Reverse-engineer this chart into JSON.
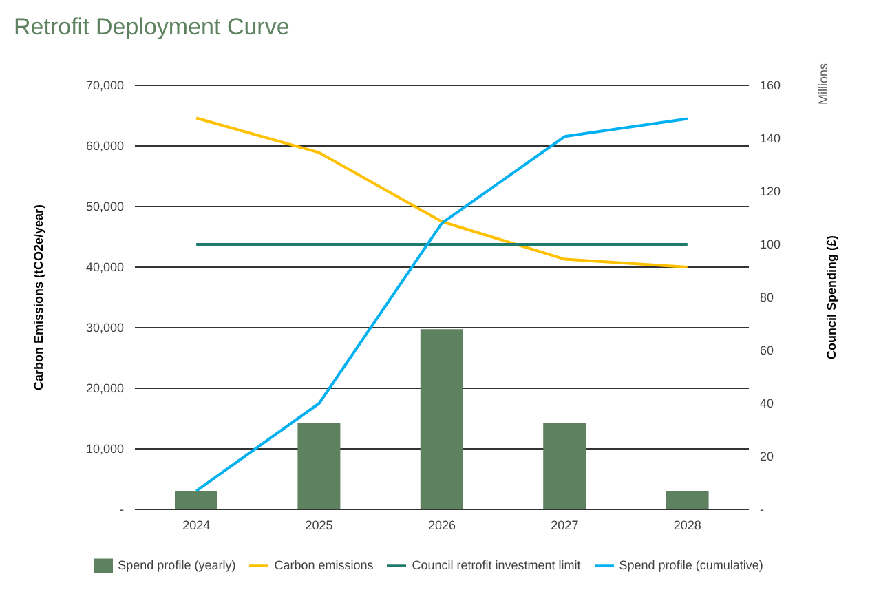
{
  "chart_data": {
    "type": "bar",
    "title": "Retrofit Deployment Curve",
    "ylabel": "Carbon Emissions (tCO2e/year)",
    "y2label": "Council Spending (£)",
    "annotations": [
      "Millions"
    ],
    "categories": [
      "2024",
      "2025",
      "2026",
      "2027",
      "2028"
    ],
    "series": [
      {
        "name": "Spend profile (yearly)",
        "axis": "y2",
        "color": "#5e8260",
        "values": [
          7,
          32.7,
          68,
          32.7,
          7
        ]
      },
      {
        "name": "Carbon emissions",
        "type": "line",
        "color": "#ffc000",
        "values": [
          64600,
          58900,
          47500,
          41300,
          40000
        ]
      },
      {
        "name": "Council retrofit investment limit",
        "type": "line",
        "axis": "y2",
        "color": "#1f7a6e",
        "values": [
          100,
          100,
          100,
          100,
          100
        ]
      },
      {
        "name": "Spend profile (cumulative)",
        "type": "line",
        "axis": "y2",
        "color": "#00b0f0",
        "values": [
          7,
          40,
          108,
          140.7,
          147.4
        ]
      }
    ],
    "ylim": [
      0,
      70000
    ],
    "yticks": [
      {
        "value": 0,
        "label": "-"
      },
      {
        "value": 10000,
        "label": "10,000"
      },
      {
        "value": 20000,
        "label": "20,000"
      },
      {
        "value": 30000,
        "label": "30,000"
      },
      {
        "value": 40000,
        "label": "40,000"
      },
      {
        "value": 50000,
        "label": "50,000"
      },
      {
        "value": 60000,
        "label": "60,000"
      },
      {
        "value": 70000,
        "label": "70,000"
      }
    ],
    "y2lim": [
      0,
      160
    ],
    "y2ticks": [
      {
        "value": 0,
        "label": "-"
      },
      20,
      40,
      60,
      80,
      100,
      120,
      140,
      160
    ],
    "grid": "y",
    "legend": "bottom"
  }
}
